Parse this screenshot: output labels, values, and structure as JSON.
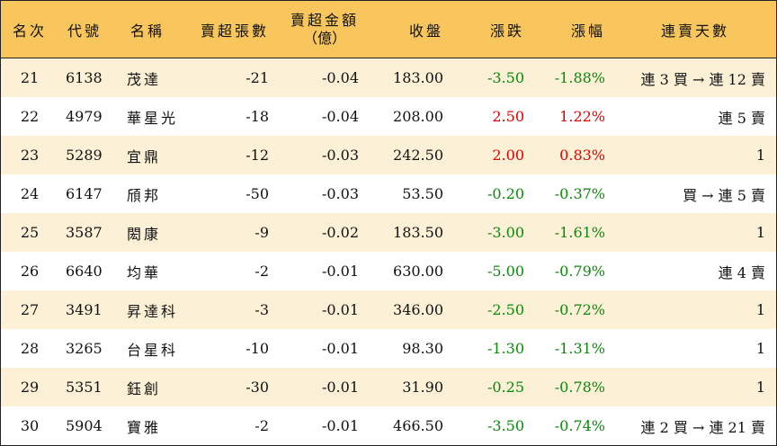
{
  "colors": {
    "header_bg": "#f8c65c",
    "odd_row_bg": "#fcf0d6",
    "up": "#e00000",
    "down": "#0a8a0a"
  },
  "headers": {
    "rank": "名次",
    "code": "代號",
    "name": "名稱",
    "sell_lots": "賣超張數",
    "sell_amount_line1": "賣超金額",
    "sell_amount_line2": "（億）",
    "close": "收盤",
    "change": "漲跌",
    "pct": "漲幅",
    "streak": "連賣天數"
  },
  "rows": [
    {
      "rank": "21",
      "code": "6138",
      "name": "茂達",
      "sell_lots": "-21",
      "sell_amount": "-0.04",
      "close": "183.00",
      "change": "-3.50",
      "pct": "-1.88%",
      "dir": "down",
      "streak": "連 3 買 → 連 12 賣"
    },
    {
      "rank": "22",
      "code": "4979",
      "name": "華星光",
      "sell_lots": "-18",
      "sell_amount": "-0.04",
      "close": "208.00",
      "change": "2.50",
      "pct": "1.22%",
      "dir": "up",
      "streak": "連 5 賣"
    },
    {
      "rank": "23",
      "code": "5289",
      "name": "宜鼎",
      "sell_lots": "-12",
      "sell_amount": "-0.03",
      "close": "242.50",
      "change": "2.00",
      "pct": "0.83%",
      "dir": "up",
      "streak": "1"
    },
    {
      "rank": "24",
      "code": "6147",
      "name": "頎邦",
      "sell_lots": "-50",
      "sell_amount": "-0.03",
      "close": "53.50",
      "change": "-0.20",
      "pct": "-0.37%",
      "dir": "down",
      "streak": "買 → 連 5 賣"
    },
    {
      "rank": "25",
      "code": "3587",
      "name": "閎康",
      "sell_lots": "-9",
      "sell_amount": "-0.02",
      "close": "183.50",
      "change": "-3.00",
      "pct": "-1.61%",
      "dir": "down",
      "streak": "1"
    },
    {
      "rank": "26",
      "code": "6640",
      "name": "均華",
      "sell_lots": "-2",
      "sell_amount": "-0.01",
      "close": "630.00",
      "change": "-5.00",
      "pct": "-0.79%",
      "dir": "down",
      "streak": "連 4 賣"
    },
    {
      "rank": "27",
      "code": "3491",
      "name": "昇達科",
      "sell_lots": "-3",
      "sell_amount": "-0.01",
      "close": "346.00",
      "change": "-2.50",
      "pct": "-0.72%",
      "dir": "down",
      "streak": "1"
    },
    {
      "rank": "28",
      "code": "3265",
      "name": "台星科",
      "sell_lots": "-10",
      "sell_amount": "-0.01",
      "close": "98.30",
      "change": "-1.30",
      "pct": "-1.31%",
      "dir": "down",
      "streak": "1"
    },
    {
      "rank": "29",
      "code": "5351",
      "name": "鈺創",
      "sell_lots": "-30",
      "sell_amount": "-0.01",
      "close": "31.90",
      "change": "-0.25",
      "pct": "-0.78%",
      "dir": "down",
      "streak": "1"
    },
    {
      "rank": "30",
      "code": "5904",
      "name": "寶雅",
      "sell_lots": "-2",
      "sell_amount": "-0.01",
      "close": "466.50",
      "change": "-3.50",
      "pct": "-0.74%",
      "dir": "down",
      "streak": "連 2 買 → 連 21 賣"
    }
  ]
}
